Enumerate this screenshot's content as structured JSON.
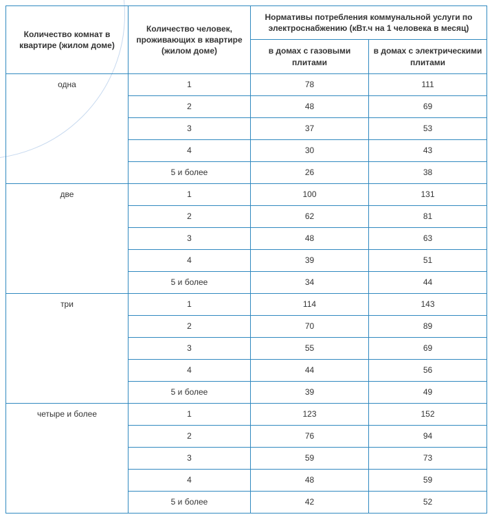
{
  "table": {
    "border_color": "#2f88bf",
    "background_color": "#ffffff",
    "font_family": "Arial",
    "header_fontsize": 12,
    "cell_fontsize": 12,
    "text_color": "#333333",
    "columns": {
      "col1": "Количество комнат в квартире\n(жилом доме)",
      "col2": "Количество человек, проживающих в квартире\n(жилом доме)",
      "col34_top": "Нормативы потребления коммунальной услуги по электроснабжению (кВт.ч на 1 человека в месяц)",
      "col3": "в домах с газовыми плитами",
      "col4": "в домах с электрическими плитами"
    },
    "groups": [
      {
        "rooms": "одна",
        "rows": [
          {
            "people": "1",
            "gas": "78",
            "elec": "111"
          },
          {
            "people": "2",
            "gas": "48",
            "elec": "69"
          },
          {
            "people": "3",
            "gas": "37",
            "elec": "53"
          },
          {
            "people": "4",
            "gas": "30",
            "elec": "43"
          },
          {
            "people": "5 и более",
            "gas": "26",
            "elec": "38"
          }
        ]
      },
      {
        "rooms": "две",
        "rows": [
          {
            "people": "1",
            "gas": "100",
            "elec": "131"
          },
          {
            "people": "2",
            "gas": "62",
            "elec": "81"
          },
          {
            "people": "3",
            "gas": "48",
            "elec": "63"
          },
          {
            "people": "4",
            "gas": "39",
            "elec": "51"
          },
          {
            "people": "5 и более",
            "gas": "34",
            "elec": "44"
          }
        ]
      },
      {
        "rooms": "три",
        "rows": [
          {
            "people": "1",
            "gas": "114",
            "elec": "143"
          },
          {
            "people": "2",
            "gas": "70",
            "elec": "89"
          },
          {
            "people": "3",
            "gas": "55",
            "elec": "69"
          },
          {
            "people": "4",
            "gas": "44",
            "elec": "56"
          },
          {
            "people": "5 и более",
            "gas": "39",
            "elec": "49"
          }
        ]
      },
      {
        "rooms": "четыре и более",
        "rows": [
          {
            "people": "1",
            "gas": "123",
            "elec": "152"
          },
          {
            "people": "2",
            "gas": "76",
            "elec": "94"
          },
          {
            "people": "3",
            "gas": "59",
            "elec": "73"
          },
          {
            "people": "4",
            "gas": "48",
            "elec": "59"
          },
          {
            "people": "5 и более",
            "gas": "42",
            "elec": "52"
          }
        ]
      }
    ]
  }
}
